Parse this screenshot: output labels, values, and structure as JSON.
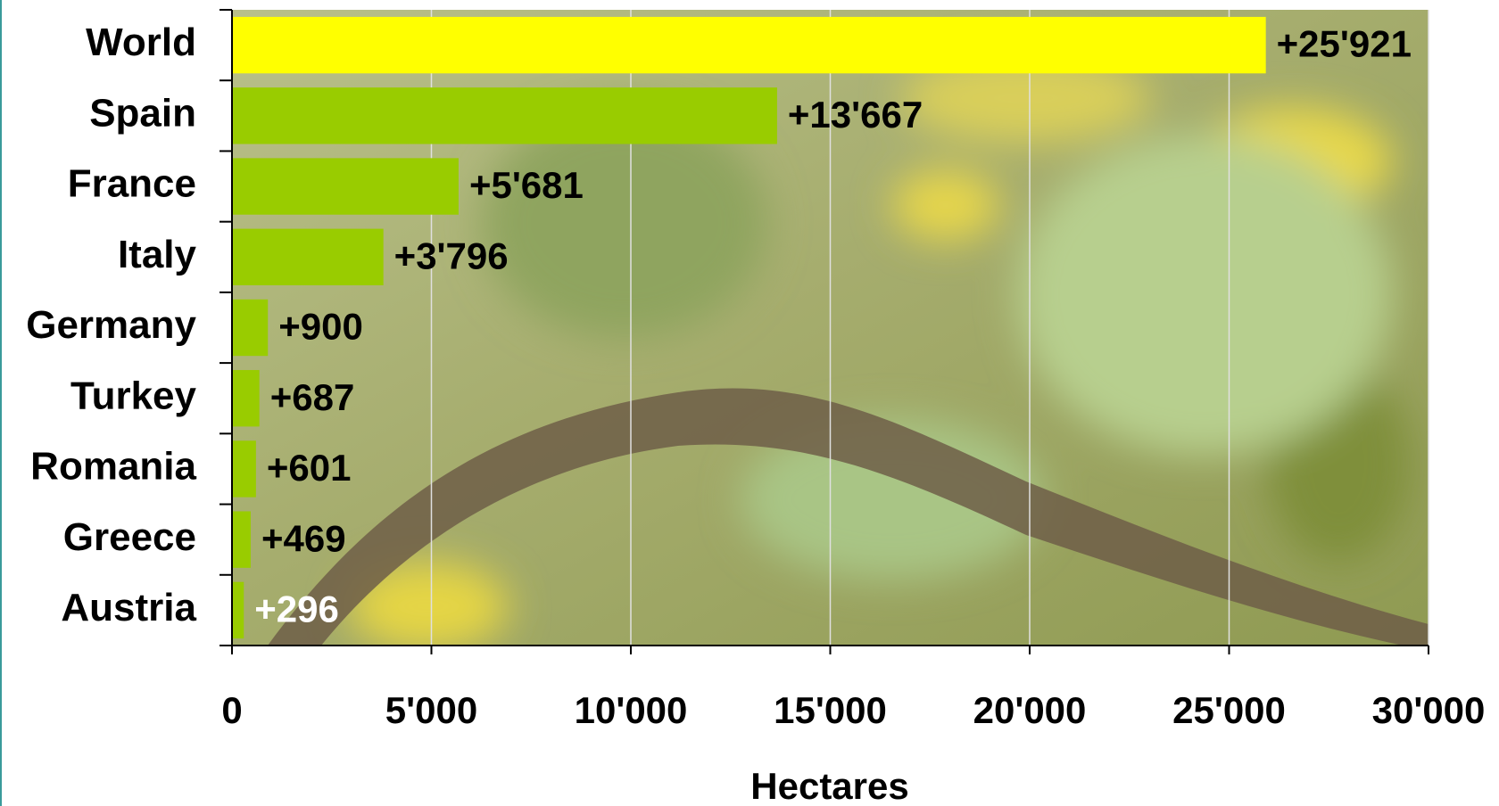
{
  "chart_data": {
    "type": "bar",
    "orientation": "horizontal",
    "x_label": "Hectares",
    "categories": [
      "World",
      "Spain",
      "France",
      "Italy",
      "Germany",
      "Turkey",
      "Romania",
      "Greece",
      "Austria"
    ],
    "values": [
      25921,
      13667,
      5681,
      3796,
      900,
      687,
      601,
      469,
      296
    ],
    "value_labels": [
      "+25'921",
      "+13'667",
      "+5'681",
      "+3'796",
      "+900",
      "+687",
      "+601",
      "+469",
      "+296"
    ],
    "colors": [
      "#ffff00",
      "#99cc00",
      "#99cc00",
      "#99cc00",
      "#99cc00",
      "#99cc00",
      "#99cc00",
      "#99cc00",
      "#99cc00"
    ],
    "value_label_colors": [
      "#000000",
      "#000000",
      "#000000",
      "#000000",
      "#000000",
      "#000000",
      "#000000",
      "#000000",
      "#ffffff"
    ],
    "xlim": [
      0,
      30000
    ],
    "xticks": [
      0,
      {
        "value": 5000,
        "label": "5'000"
      },
      {
        "value": 10000,
        "label": "10'000"
      },
      {
        "value": 15000,
        "label": "15'000"
      },
      {
        "value": 20000,
        "label": "20'000"
      },
      {
        "value": 25000,
        "label": "25'000"
      },
      {
        "value": 30000,
        "label": "30'000"
      }
    ],
    "grid": true
  }
}
